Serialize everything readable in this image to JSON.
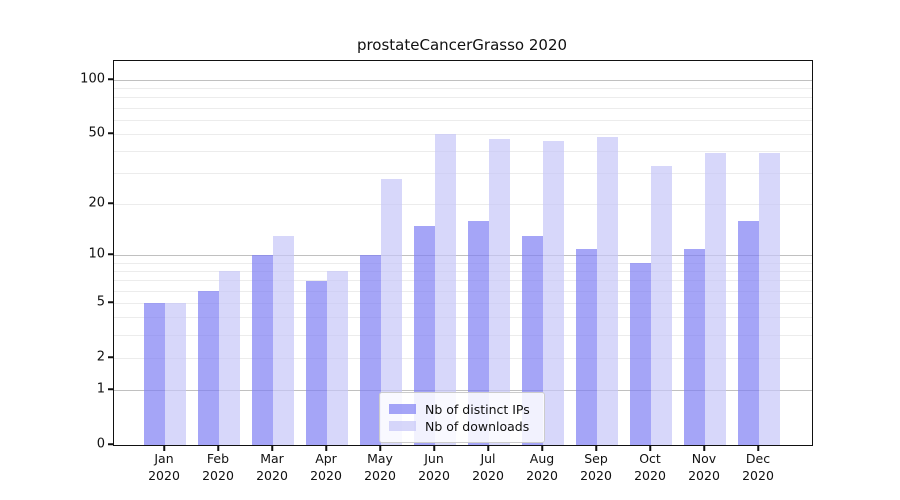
{
  "figure": {
    "title": "prostateCancerGrasso 2020",
    "background": "#ffffff"
  },
  "chart_data": {
    "type": "bar",
    "title": "prostateCancerGrasso 2020",
    "scale": "log1p",
    "categories": [
      "Jan",
      "Feb",
      "Mar",
      "Apr",
      "May",
      "Jun",
      "Jul",
      "Aug",
      "Sep",
      "Oct",
      "Nov",
      "Dec"
    ],
    "category_year": "2020",
    "series": [
      {
        "name": "Nb of distinct IPs",
        "color": "rgba(127,127,243,0.70)",
        "color_on_white": "#a7a7f7",
        "values": [
          5,
          6,
          10,
          7,
          10,
          15,
          16,
          13,
          11,
          9,
          11,
          16
        ]
      },
      {
        "name": "Nb of downloads",
        "color": "rgba(198,198,248,0.70)",
        "color_on_white": "#d9d9f9",
        "values": [
          5,
          8,
          13,
          8,
          28,
          50,
          47,
          46,
          48,
          33,
          39,
          39
        ]
      }
    ],
    "yticks": [
      0,
      1,
      2,
      5,
      10,
      20,
      50,
      100
    ],
    "major_gridlines": [
      1,
      10,
      100
    ],
    "minor_gridlines": [
      2,
      3,
      4,
      5,
      6,
      7,
      8,
      9,
      20,
      30,
      40,
      50,
      60,
      70,
      80,
      90
    ],
    "ylim": [
      0,
      127
    ],
    "grid": true,
    "legend": {
      "position": "lower center",
      "entries": [
        "Nb of distinct IPs",
        "Nb of downloads"
      ]
    },
    "colors": {
      "major_grid": "#c0c0c0",
      "minor_grid": "#ececec",
      "axis": "#111111",
      "text": "#111111"
    }
  }
}
